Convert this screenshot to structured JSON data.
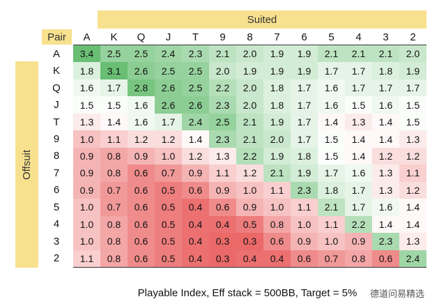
{
  "suited": "Suited",
  "pair": "Pair",
  "offsuit": "Offsuit",
  "columns": [
    "A",
    "K",
    "Q",
    "J",
    "T",
    "9",
    "8",
    "7",
    "6",
    "5",
    "4",
    "3",
    "2"
  ],
  "rows": [
    {
      "label": "A",
      "cells": [
        "3.4",
        "2.5",
        "2.5",
        "2.4",
        "2.3",
        "2.1",
        "2.0",
        "1.9",
        "1.9",
        "2.1",
        "2.1",
        "2.1",
        "2.0"
      ]
    },
    {
      "label": "K",
      "cells": [
        "1.8",
        "3.1",
        "2.6",
        "2.5",
        "2.5",
        "2.0",
        "1.9",
        "1.9",
        "1.9",
        "1.7",
        "1.7",
        "1.8",
        "1.9"
      ]
    },
    {
      "label": "Q",
      "cells": [
        "1.6",
        "1.7",
        "2.8",
        "2.6",
        "2.5",
        "2.2",
        "2.0",
        "1.8",
        "1.7",
        "1.6",
        "1.7",
        "1.7",
        "1.7"
      ]
    },
    {
      "label": "J",
      "cells": [
        "1.5",
        "1.5",
        "1.6",
        "2.6",
        "2.6",
        "2.3",
        "2.0",
        "1.8",
        "1.7",
        "1.6",
        "1.5",
        "1.6",
        "1.5"
      ]
    },
    {
      "label": "T",
      "cells": [
        "1.3",
        "1.4",
        "1.6",
        "1.7",
        "2.4",
        "2.5",
        "2.1",
        "1.9",
        "1.7",
        "1.4",
        "1.3",
        "1.4",
        "1.5"
      ]
    },
    {
      "label": "9",
      "cells": [
        "1.0",
        "1.1",
        "1.2",
        "1.2",
        "1.4",
        "2.3",
        "2.1",
        "2.0",
        "1.7",
        "1.5",
        "1.4",
        "1.4",
        "1.3"
      ]
    },
    {
      "label": "8",
      "cells": [
        "0.9",
        "0.8",
        "0.9",
        "1.0",
        "1.2",
        "1.3",
        "2.2",
        "1.9",
        "1.8",
        "1.5",
        "1.4",
        "1.2",
        "1.2"
      ]
    },
    {
      "label": "7",
      "cells": [
        "0.9",
        "0.8",
        "0.6",
        "0.7",
        "0.9",
        "1.1",
        "1.2",
        "2.1",
        "1.9",
        "1.7",
        "1.6",
        "1.3",
        "1.1"
      ]
    },
    {
      "label": "6",
      "cells": [
        "0.9",
        "0.7",
        "0.6",
        "0.5",
        "0.6",
        "0.9",
        "1.0",
        "1.1",
        "2.3",
        "1.8",
        "1.7",
        "1.3",
        "1.2"
      ]
    },
    {
      "label": "5",
      "cells": [
        "1.0",
        "0.7",
        "0.6",
        "0.5",
        "0.4",
        "0.6",
        "0.9",
        "1.0",
        "1.1",
        "2.1",
        "1.7",
        "1.6",
        "1.4"
      ]
    },
    {
      "label": "4",
      "cells": [
        "1.0",
        "0.8",
        "0.6",
        "0.5",
        "0.4",
        "0.4",
        "0.5",
        "0.8",
        "1.0",
        "1.1",
        "2.2",
        "1.4",
        "1.4"
      ]
    },
    {
      "label": "3",
      "cells": [
        "1.0",
        "0.8",
        "0.6",
        "0.5",
        "0.4",
        "0.3",
        "0.3",
        "0.6",
        "0.9",
        "1.0",
        "0.9",
        "2.3",
        "1.3"
      ]
    },
    {
      "label": "2",
      "cells": [
        "1.1",
        "0.8",
        "0.6",
        "0.5",
        "0.4",
        "0.3",
        "0.4",
        "0.4",
        "0.6",
        "0.7",
        "0.8",
        "0.6",
        "2.4"
      ]
    }
  ],
  "caption": "Playable Index, Eff stack = 500BB, Target = 5%",
  "watermark": "德道问易精选"
}
